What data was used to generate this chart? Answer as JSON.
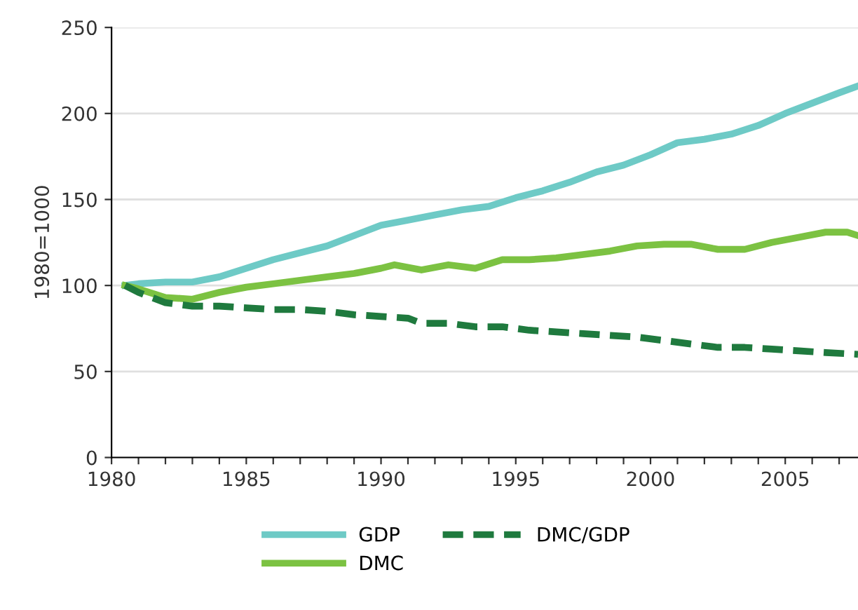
{
  "chart_data": {
    "type": "line",
    "ylabel": "1980=1000",
    "xlim": [
      1980,
      2007.7
    ],
    "ylim": [
      0,
      250
    ],
    "xticks": [
      1980,
      {
        "value": 1981,
        "label": null
      },
      {
        "value": 1982,
        "label": null
      },
      {
        "value": 1983,
        "label": null
      },
      {
        "value": 1984,
        "label": null
      },
      1985,
      {
        "value": 1986,
        "label": null
      },
      {
        "value": 1987,
        "label": null
      },
      {
        "value": 1988,
        "label": null
      },
      {
        "value": 1989,
        "label": null
      },
      1990,
      {
        "value": 1991,
        "label": null
      },
      {
        "value": 1992,
        "label": null
      },
      {
        "value": 1993,
        "label": null
      },
      {
        "value": 1994,
        "label": null
      },
      1995,
      {
        "value": 1996,
        "label": null
      },
      {
        "value": 1997,
        "label": null
      },
      {
        "value": 1998,
        "label": null
      },
      {
        "value": 1999,
        "label": null
      },
      2000,
      {
        "value": 2001,
        "label": null
      },
      {
        "value": 2002,
        "label": null
      },
      {
        "value": 2003,
        "label": null
      },
      {
        "value": 2004,
        "label": null
      },
      2005,
      {
        "value": 2006,
        "label": null
      },
      {
        "value": 2007,
        "label": null
      }
    ],
    "yticks": [
      0,
      50,
      100,
      150,
      200,
      250
    ],
    "grid": "y",
    "legend": "bottom",
    "series": [
      {
        "name": "GDP",
        "color": "#6ecac6",
        "line_style": "solid",
        "x": [
          1980.5,
          1981,
          1982,
          1983,
          1984,
          1985,
          1986,
          1987,
          1988,
          1989,
          1990,
          1991,
          1992,
          1993,
          1994,
          1995,
          1996,
          1997,
          1998,
          1999,
          2000,
          2001,
          2002,
          2003,
          2004,
          2005,
          2006,
          2007,
          2007.7
        ],
        "values": [
          100,
          101,
          102,
          102,
          105,
          110,
          115,
          119,
          123,
          129,
          135,
          138,
          141,
          144,
          146,
          151,
          155,
          160,
          166,
          170,
          176,
          183,
          185,
          188,
          193,
          200,
          206,
          212,
          216
        ]
      },
      {
        "name": "DMC",
        "color": "#7cc242",
        "line_style": "solid",
        "x": [
          1980.5,
          1981,
          1982,
          1983,
          1984,
          1985,
          1986,
          1987,
          1988,
          1989,
          1990,
          1990.5,
          1991.5,
          1992.5,
          1993.5,
          1994.5,
          1995.5,
          1996.5,
          1997.5,
          1998.5,
          1999.5,
          2000.5,
          2001.5,
          2002.5,
          2003.5,
          2004.5,
          2005.5,
          2006.5,
          2007.3,
          2007.7
        ],
        "values": [
          100,
          98,
          93,
          92,
          96,
          99,
          101,
          103,
          105,
          107,
          110,
          112,
          109,
          112,
          110,
          115,
          115,
          116,
          118,
          120,
          123,
          124,
          124,
          121,
          121,
          125,
          128,
          131,
          131,
          129
        ]
      },
      {
        "name": "DMC/GDP",
        "color": "#1f7a3e",
        "line_style": "dashed",
        "x": [
          1980.5,
          1981,
          1982,
          1983,
          1984,
          1985,
          1986,
          1987,
          1988,
          1989,
          1990,
          1991,
          1991.5,
          1992.5,
          1993.5,
          1994.5,
          1995.5,
          1996.5,
          1997.5,
          1998.5,
          1999.5,
          2000.5,
          2001.5,
          2002.5,
          2003.5,
          2004.5,
          2005.5,
          2006.5,
          2007.7
        ],
        "values": [
          100,
          96,
          90,
          88,
          88,
          87,
          86,
          86,
          85,
          83,
          82,
          81,
          78,
          78,
          76,
          76,
          74,
          73,
          72,
          71,
          70,
          68,
          66,
          64,
          64,
          63,
          62,
          61,
          60
        ]
      }
    ]
  }
}
